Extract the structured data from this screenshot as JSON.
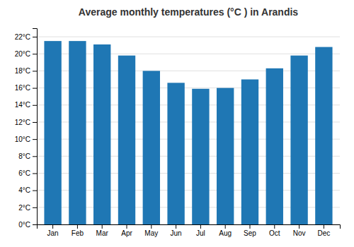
{
  "chart_data": {
    "type": "bar",
    "title": "Average monthly temperatures (°C ) in Arandis",
    "categories": [
      "Jan",
      "Feb",
      "Mar",
      "Apr",
      "May",
      "Jun",
      "Jul",
      "Aug",
      "Sep",
      "Oct",
      "Nov",
      "Dec"
    ],
    "values": [
      21.5,
      21.5,
      21.1,
      19.8,
      18.0,
      16.6,
      15.9,
      16.0,
      17.0,
      18.3,
      19.8,
      20.8
    ],
    "ylim": [
      0,
      23
    ],
    "yticks": [
      {
        "value": 0,
        "label": "0°C"
      },
      {
        "value": 2,
        "label": "2°C"
      },
      {
        "value": 4,
        "label": "4°C"
      },
      {
        "value": 6,
        "label": "6°C"
      },
      {
        "value": 8,
        "label": "8°C"
      },
      {
        "value": 10,
        "label": "10°C"
      },
      {
        "value": 12,
        "label": "12°C"
      },
      {
        "value": 14,
        "label": "14°C"
      },
      {
        "value": 16,
        "label": "16°C"
      },
      {
        "value": 18,
        "label": "18°C"
      },
      {
        "value": 20,
        "label": "20°C"
      },
      {
        "value": 22,
        "label": "22°C"
      }
    ],
    "grid": true
  }
}
